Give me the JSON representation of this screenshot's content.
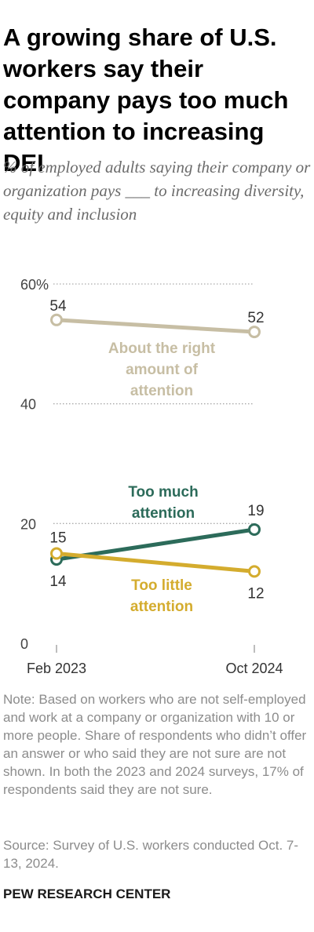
{
  "title": "A growing share of U.S. workers say their company pays too much attention to increasing DEI",
  "subtitle": "% of employed adults saying their company or organization pays ___ to increasing diversity, equity and inclusion",
  "note": "Note: Based on workers who are not self-employed and work at a company or organization with 10 or more people. Share of respondents who didn’t offer an answer or who said they are not sure are not shown. In both the 2023 and 2024 surveys, 17% of respondents said they are not sure.",
  "source": "Source: Survey of U.S. workers conducted Oct. 7-13, 2024.",
  "footer": "PEW RESEARCH CENTER",
  "chart_data": {
    "type": "line",
    "x": [
      "Feb 2023",
      "Oct 2024"
    ],
    "ylim": [
      0,
      60
    ],
    "yticks": [
      0,
      20,
      40,
      60
    ],
    "ytick_labels": [
      "0",
      "20",
      "40",
      "60%"
    ],
    "grid": true,
    "series": [
      {
        "name": "About the right amount of attention",
        "values": [
          54,
          52
        ],
        "color": "#c7bea4",
        "label_lines": [
          "About the right",
          "amount of",
          "attention"
        ]
      },
      {
        "name": "Too much attention",
        "values": [
          14,
          19
        ],
        "color": "#2c6b5a",
        "label_lines": [
          "Too much",
          "attention"
        ]
      },
      {
        "name": "Too little attention",
        "values": [
          15,
          12
        ],
        "color": "#d4ac2e",
        "label_lines": [
          "Too little",
          "attention"
        ]
      }
    ]
  }
}
